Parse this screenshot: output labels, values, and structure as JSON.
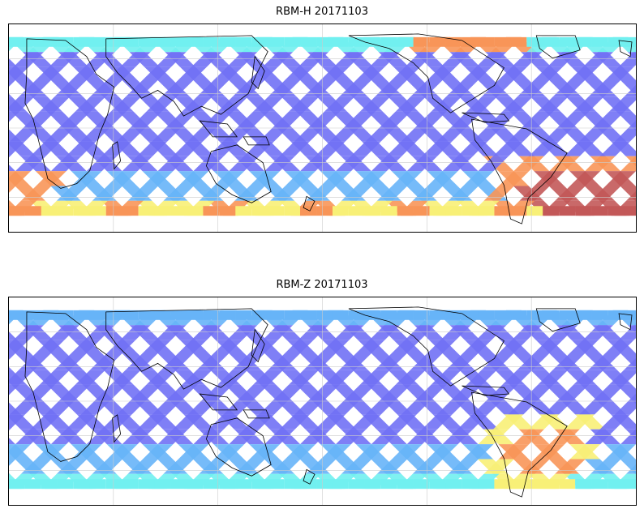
{
  "figure": {
    "panels": [
      {
        "id": "rbm-h",
        "title": "RBM-H 20171103"
      },
      {
        "id": "rbm-z",
        "title": "RBM-Z 20171103"
      }
    ]
  },
  "colors": {
    "low": "#6a6af5",
    "low_mid": "#5fb0f8",
    "mid": "#6af0f0",
    "mid_high": "#f8f070",
    "high": "#f89050",
    "max": "#c05050",
    "coastline": "#000000",
    "gridline": "#cccccc"
  }
}
